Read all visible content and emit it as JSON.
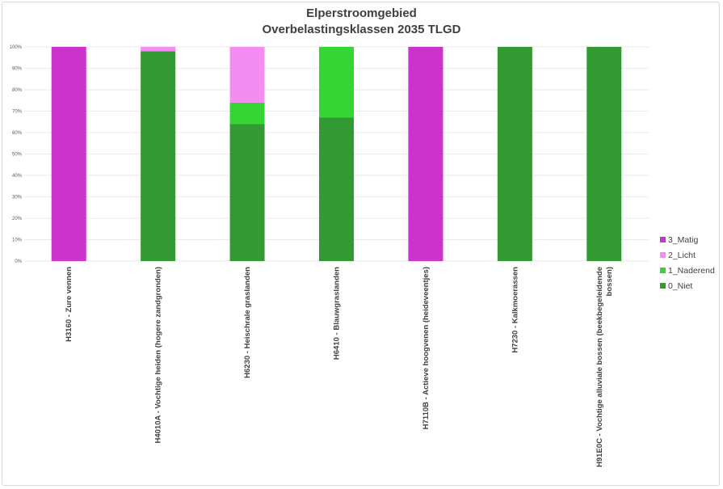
{
  "chart_data": {
    "type": "bar",
    "stacked": true,
    "percent": true,
    "title": "Elperstroomgebied",
    "subtitle": "Overbelastingsklassen 2035 TLGD",
    "xlabel": "",
    "ylabel": "",
    "ylim": [
      0,
      100
    ],
    "y_ticks": [
      "0%",
      "10%",
      "20%",
      "30%",
      "40%",
      "50%",
      "60%",
      "70%",
      "80%",
      "90%",
      "100%"
    ],
    "grid": true,
    "legend_position": "right",
    "categories": [
      [
        "H3160 - Zure vennen"
      ],
      [
        "H4010A - Vochtige heiden (hogere zandgronden)"
      ],
      [
        "H6230 - Heischrale graslanden"
      ],
      [
        "H6410 - Blauwgraslanden"
      ],
      [
        "H7110B - Actieve hoogvenen (heideveentjes)"
      ],
      [
        "H7230 - Kalkmoerassen"
      ],
      [
        "H91E0C - Vochtige alluviale bossen (beekbegeleidende",
        "bossen)"
      ]
    ],
    "series": [
      {
        "name": "0_Niet",
        "color": "#339933",
        "values": [
          0,
          98,
          64,
          67,
          0,
          100,
          100
        ]
      },
      {
        "name": "1_Naderend",
        "color": "#33d633",
        "values": [
          0,
          0,
          10,
          33,
          0,
          0,
          0
        ]
      },
      {
        "name": "2_Licht",
        "color": "#f58cf2",
        "values": [
          0,
          2,
          26,
          0,
          0,
          0,
          0
        ]
      },
      {
        "name": "3_Matig",
        "color": "#cc33cc",
        "values": [
          100,
          0,
          0,
          0,
          100,
          0,
          0
        ]
      }
    ]
  }
}
